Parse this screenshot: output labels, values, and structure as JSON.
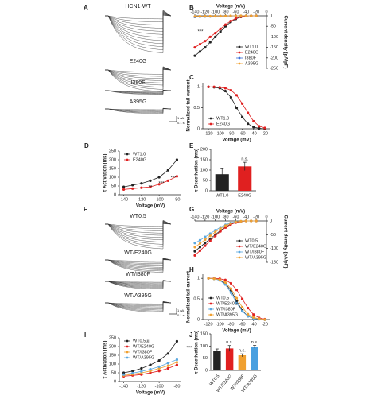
{
  "chart_data": [
    {
      "type": "traces",
      "panel_label": "A",
      "traces": [
        "HCN1-WT",
        "E240G",
        "I380F",
        "A395G"
      ],
      "scale_labels": [
        "1 nA",
        "0.1 s"
      ]
    },
    {
      "type": "line",
      "panel_label": "B",
      "x_label": "Voltage (mV)",
      "y_label": "Current density (pA/pF)",
      "x_axis_position": "top",
      "y_axis_position": "right",
      "legend": "lower right",
      "x": [
        -140,
        -130,
        -120,
        -110,
        -100,
        -90,
        -80,
        -70,
        -60,
        -50,
        -40,
        -30,
        -20
      ],
      "xlim": [
        -140,
        0
      ],
      "xticks": [
        -140,
        -120,
        -100,
        -80,
        -60,
        -40,
        -20,
        0
      ],
      "ylim": [
        -250,
        0
      ],
      "yticks": [
        0,
        -50,
        -100,
        -150,
        -200,
        -250
      ],
      "annotations": [
        "***"
      ],
      "series": [
        {
          "name": "WT1.0",
          "color": "#222222",
          "values": [
            -190,
            -170,
            -150,
            -125,
            -100,
            -75,
            -50,
            -30,
            -15,
            -5,
            -1,
            0,
            0
          ]
        },
        {
          "name": "E240G",
          "color": "#e02020",
          "values": [
            -150,
            -135,
            -120,
            -100,
            -82,
            -62,
            -42,
            -25,
            -12,
            -4,
            -1,
            0,
            0
          ]
        },
        {
          "name": "I380F",
          "color": "#3a6fd8",
          "values": [
            -5,
            -4,
            -3,
            -3,
            -2,
            -2,
            -1,
            -1,
            0,
            0,
            0,
            0,
            0
          ]
        },
        {
          "name": "A395G",
          "color": "#f0a030",
          "values": [
            -3,
            -2,
            -2,
            -2,
            -1,
            -1,
            -1,
            0,
            0,
            0,
            0,
            0,
            0
          ]
        }
      ]
    },
    {
      "type": "line",
      "panel_label": "C",
      "x_label": "Voltage (mV)",
      "y_label": "Normalized tail current",
      "x_axis_position": "bottom",
      "y_axis_position": "left",
      "legend": "lower left",
      "x": [
        -120,
        -110,
        -100,
        -90,
        -80,
        -70,
        -60,
        -50,
        -40,
        -30,
        -20
      ],
      "xlim": [
        -130,
        -10
      ],
      "xticks": [
        -120,
        -100,
        -80,
        -60,
        -40,
        -20
      ],
      "ylim": [
        0,
        1.1
      ],
      "yticks": [
        0,
        0.5,
        1
      ],
      "series": [
        {
          "name": "WT1.0",
          "color": "#222222",
          "values": [
            1,
            0.99,
            0.97,
            0.9,
            0.75,
            0.5,
            0.28,
            0.12,
            0.04,
            0.01,
            0
          ]
        },
        {
          "name": "E240G",
          "color": "#e02020",
          "values": [
            1,
            1,
            0.99,
            0.97,
            0.92,
            0.8,
            0.6,
            0.38,
            0.18,
            0.06,
            0.02
          ]
        }
      ]
    },
    {
      "type": "line",
      "panel_label": "D",
      "x_label": "Voltage (mV)",
      "y_label": "τ Activation (ms)",
      "x_axis_position": "bottom",
      "y_axis_position": "left",
      "legend": "upper left",
      "x": [
        -140,
        -130,
        -120,
        -110,
        -100,
        -90,
        -80
      ],
      "xlim": [
        -145,
        -75
      ],
      "xticks": [
        -140,
        -120,
        -100,
        -80
      ],
      "ylim": [
        0,
        250
      ],
      "yticks": [
        0,
        50,
        100,
        150,
        200,
        250
      ],
      "annotations": [
        "**",
        "***",
        "***"
      ],
      "series": [
        {
          "name": "WT1.0",
          "color": "#222222",
          "values": [
            45,
            55,
            65,
            80,
            100,
            140,
            200
          ]
        },
        {
          "name": "E240G",
          "color": "#e02020",
          "values": [
            30,
            35,
            40,
            45,
            60,
            80,
            105
          ]
        }
      ]
    },
    {
      "type": "bar",
      "panel_label": "E",
      "y_label": "τ Deactivation (ms)",
      "categories": [
        "WT1.0",
        "E240G"
      ],
      "values": [
        80,
        118
      ],
      "errors": [
        30,
        20
      ],
      "colors": [
        "#222222",
        "#e02020"
      ],
      "bar_labels": [
        null,
        "n.s."
      ],
      "ylim": [
        0,
        200
      ],
      "yticks": [
        0,
        50,
        100,
        150,
        200
      ]
    },
    {
      "type": "traces",
      "panel_label": "F",
      "traces": [
        "WT0.5",
        "WT/E240G",
        "WT/I380F",
        "WT/A395G"
      ],
      "scale_labels": [
        "1 nA",
        "0.1 s"
      ]
    },
    {
      "type": "line",
      "panel_label": "G",
      "x_label": "Voltage (mV)",
      "y_label": "Current density (pA/pF)",
      "x_axis_position": "top",
      "y_axis_position": "right",
      "legend": "lower right",
      "x": [
        -140,
        -130,
        -120,
        -110,
        -100,
        -90,
        -80,
        -70,
        -60,
        -50,
        -40,
        -30,
        -20
      ],
      "xlim": [
        -140,
        0
      ],
      "xticks": [
        -140,
        -120,
        -100,
        -80,
        -60,
        -40,
        -20,
        0
      ],
      "ylim": [
        -150,
        0
      ],
      "yticks": [
        0,
        -50,
        -100,
        -150
      ],
      "series": [
        {
          "name": "WT0.5",
          "color": "#222222",
          "values": [
            -110,
            -95,
            -80,
            -65,
            -50,
            -35,
            -22,
            -12,
            -5,
            -2,
            0,
            0,
            0
          ]
        },
        {
          "name": "WT/E240G",
          "color": "#e02020",
          "values": [
            -125,
            -108,
            -90,
            -72,
            -55,
            -38,
            -24,
            -13,
            -6,
            -2,
            0,
            0,
            0
          ]
        },
        {
          "name": "WT/I380F",
          "color": "#5aa8e0",
          "values": [
            -80,
            -70,
            -58,
            -46,
            -34,
            -23,
            -14,
            -7,
            -3,
            -1,
            0,
            0,
            0
          ]
        },
        {
          "name": "WT/A395G",
          "color": "#f0a030",
          "values": [
            -95,
            -82,
            -68,
            -54,
            -40,
            -28,
            -17,
            -9,
            -4,
            -1,
            0,
            0,
            0
          ]
        }
      ]
    },
    {
      "type": "line",
      "panel_label": "H",
      "x_label": "Voltage (mV)",
      "y_label": "Normalized tail current",
      "x_axis_position": "bottom",
      "y_axis_position": "left",
      "legend": "lower left",
      "x": [
        -120,
        -110,
        -100,
        -90,
        -80,
        -70,
        -60,
        -50,
        -40,
        -30,
        -20
      ],
      "xlim": [
        -130,
        -10
      ],
      "xticks": [
        -120,
        -100,
        -80,
        -60,
        -40,
        -20
      ],
      "ylim": [
        0,
        1.1
      ],
      "yticks": [
        0,
        0.5,
        1
      ],
      "series": [
        {
          "name": "WT0.5",
          "color": "#222222",
          "values": [
            1,
            0.99,
            0.96,
            0.88,
            0.7,
            0.45,
            0.22,
            0.08,
            0.03,
            0.01,
            0
          ]
        },
        {
          "name": "WT/E240G",
          "color": "#e02020",
          "values": [
            1,
            1,
            0.99,
            0.96,
            0.88,
            0.72,
            0.5,
            0.28,
            0.12,
            0.04,
            0.01
          ]
        },
        {
          "name": "WT/I380F",
          "color": "#5aa8e0",
          "values": [
            1,
            0.99,
            0.95,
            0.85,
            0.65,
            0.4,
            0.2,
            0.08,
            0.03,
            0.01,
            0
          ]
        },
        {
          "name": "WT/A395G",
          "color": "#f0a030",
          "values": [
            1,
            0.99,
            0.97,
            0.9,
            0.75,
            0.52,
            0.3,
            0.13,
            0.05,
            0.02,
            0
          ]
        }
      ]
    },
    {
      "type": "line",
      "panel_label": "I",
      "x_label": "Voltage (mV)",
      "y_label": "τ Activation (ms)",
      "x_axis_position": "bottom",
      "y_axis_position": "left",
      "legend": "upper left",
      "x": [
        -140,
        -130,
        -120,
        -110,
        -100,
        -90,
        -80
      ],
      "xlim": [
        -145,
        -75
      ],
      "xticks": [
        -140,
        -120,
        -100,
        -80
      ],
      "ylim": [
        0,
        250
      ],
      "yticks": [
        0,
        50,
        100,
        150,
        200,
        250
      ],
      "annotations": [
        "***"
      ],
      "series": [
        {
          "name": "WT0.5uj",
          "color": "#222222",
          "values": [
            50,
            60,
            75,
            95,
            120,
            160,
            230
          ]
        },
        {
          "name": "WT/E240G",
          "color": "#e02020",
          "values": [
            30,
            35,
            40,
            50,
            60,
            75,
            95
          ]
        },
        {
          "name": "WT/I380F",
          "color": "#f0a030",
          "values": [
            35,
            42,
            50,
            60,
            75,
            90,
            110
          ]
        },
        {
          "name": "WT/A395G",
          "color": "#5aa8e0",
          "values": [
            40,
            48,
            58,
            70,
            85,
            105,
            125
          ]
        }
      ]
    },
    {
      "type": "bar",
      "panel_label": "J",
      "y_label": "τ Deactivation (ms)",
      "rotate_labels": true,
      "categories": [
        "WT0.5",
        "WT/E240G",
        "WT/I380F",
        "WT/A395G"
      ],
      "values": [
        80,
        90,
        62,
        97
      ],
      "errors": [
        8,
        12,
        6,
        6
      ],
      "colors": [
        "#222222",
        "#e02020",
        "#f0a030",
        "#4aa0e0"
      ],
      "bar_labels": [
        null,
        "n.s.",
        "n.s.",
        "n.s."
      ],
      "ylim": [
        0,
        150
      ],
      "yticks": [
        0,
        50,
        100,
        150
      ]
    }
  ]
}
